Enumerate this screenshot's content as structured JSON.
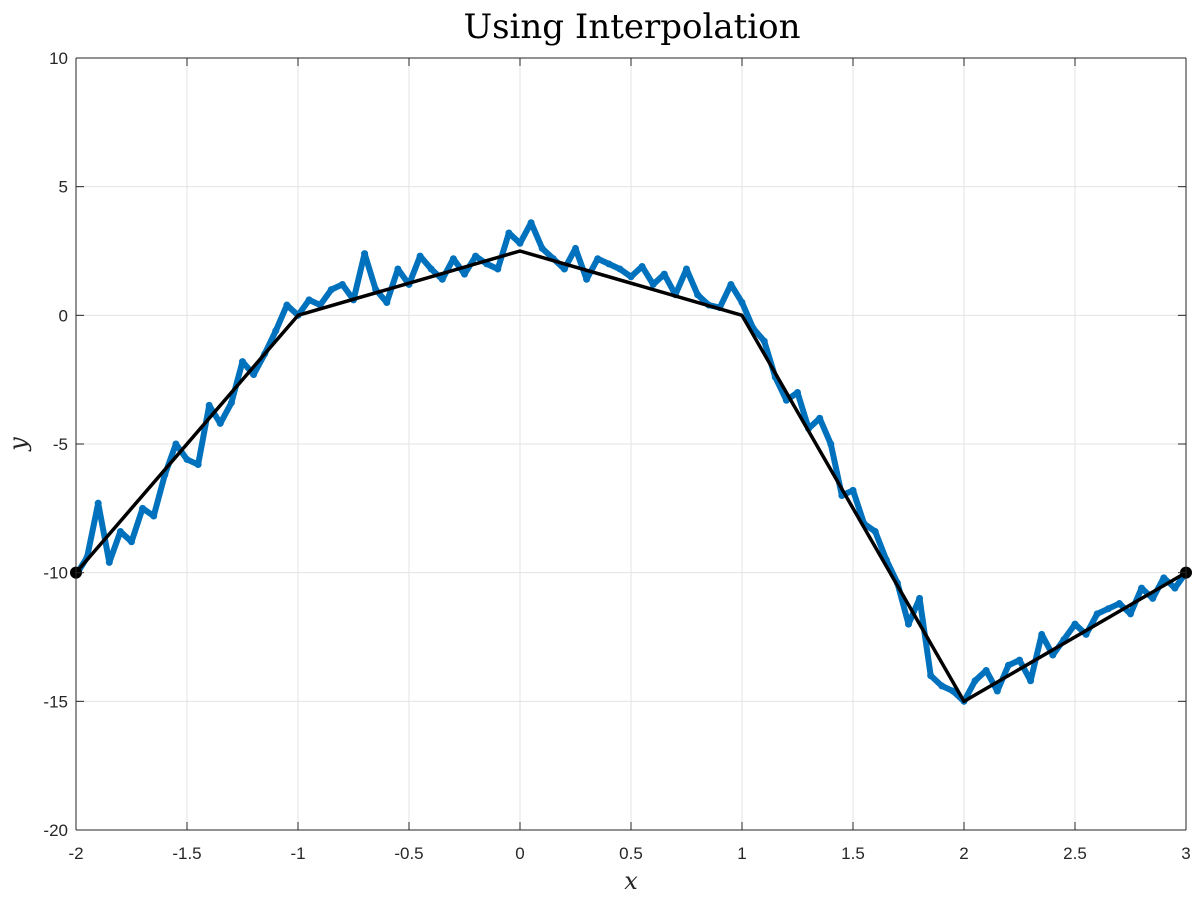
{
  "chart_data": {
    "type": "line",
    "title": "Using Interpolation",
    "xlabel": "x",
    "ylabel": "y",
    "xlim": [
      -2,
      3
    ],
    "ylim": [
      -20,
      10
    ],
    "x_ticks": [
      -2,
      -1.5,
      -1,
      -0.5,
      0,
      0.5,
      1,
      1.5,
      2,
      2.5,
      3
    ],
    "x_tick_labels": [
      "-2",
      "-1.5",
      "-1",
      "-0.5",
      "0",
      "0.5",
      "1",
      "1.5",
      "2",
      "2.5",
      "3"
    ],
    "y_ticks": [
      -20,
      -15,
      -10,
      -5,
      0,
      5,
      10
    ],
    "y_tick_labels": [
      "-20",
      "-15",
      "-10",
      "-5",
      "0",
      "5",
      "10"
    ],
    "grid": true,
    "colors": {
      "noisy": "#0072BD",
      "interp": "#000000"
    },
    "series": [
      {
        "style": "scatter",
        "marker": "dot",
        "color": "#0072BD",
        "x": [
          -2.0,
          -1.95,
          -1.9,
          -1.85,
          -1.8,
          -1.75,
          -1.7,
          -1.65,
          -1.6,
          -1.55,
          -1.5,
          -1.45,
          -1.4,
          -1.35,
          -1.3,
          -1.25,
          -1.2,
          -1.15,
          -1.1,
          -1.05,
          -1.0,
          -0.95,
          -0.9,
          -0.85,
          -0.8,
          -0.75,
          -0.7,
          -0.65,
          -0.6,
          -0.55,
          -0.5,
          -0.45,
          -0.4,
          -0.35,
          -0.3,
          -0.25,
          -0.2,
          -0.15,
          -0.1,
          -0.05,
          0.0,
          0.05,
          0.1,
          0.15,
          0.2,
          0.25,
          0.3,
          0.35,
          0.4,
          0.45,
          0.5,
          0.55,
          0.6,
          0.65,
          0.7,
          0.75,
          0.8,
          0.85,
          0.9,
          0.95,
          1.0,
          1.05,
          1.1,
          1.15,
          1.2,
          1.25,
          1.3,
          1.35,
          1.4,
          1.45,
          1.5,
          1.55,
          1.6,
          1.65,
          1.7,
          1.75,
          1.8,
          1.85,
          1.9,
          1.95,
          2.0,
          2.05,
          2.1,
          2.15,
          2.2,
          2.25,
          2.3,
          2.35,
          2.4,
          2.45,
          2.5,
          2.55,
          2.6,
          2.65,
          2.7,
          2.75,
          2.8,
          2.85,
          2.9,
          2.95,
          3.0
        ],
        "y": [
          -10.1,
          -9.4,
          -7.3,
          -9.6,
          -8.4,
          -8.8,
          -7.5,
          -7.8,
          -6.2,
          -5.0,
          -5.6,
          -5.8,
          -3.5,
          -4.2,
          -3.4,
          -1.8,
          -2.3,
          -1.5,
          -0.6,
          0.4,
          0.0,
          0.6,
          0.4,
          1.0,
          1.2,
          0.6,
          2.4,
          1.0,
          0.5,
          1.8,
          1.2,
          2.3,
          1.8,
          1.4,
          2.2,
          1.6,
          2.3,
          2.0,
          1.8,
          3.2,
          2.8,
          3.6,
          2.6,
          2.2,
          1.8,
          2.6,
          1.4,
          2.2,
          2.0,
          1.8,
          1.5,
          1.9,
          1.2,
          1.6,
          0.8,
          1.8,
          0.8,
          0.4,
          0.3,
          1.2,
          0.5,
          -0.5,
          -1.0,
          -2.4,
          -3.3,
          -3.0,
          -4.4,
          -4.0,
          -5.0,
          -7.0,
          -6.8,
          -8.1,
          -8.4,
          -9.5,
          -10.4,
          -12.0,
          -11.0,
          -14.0,
          -14.4,
          -14.6,
          -15.0,
          -14.2,
          -13.8,
          -14.6,
          -13.6,
          -13.4,
          -14.2,
          -12.4,
          -13.2,
          -12.6,
          -12.0,
          -12.4,
          -11.6,
          -11.4,
          -11.2,
          -11.6,
          -10.6,
          -11.0,
          -10.2,
          -10.6,
          -10.0
        ]
      },
      {
        "style": "line",
        "color": "#000000",
        "x": [
          -2,
          -1,
          0,
          1,
          2,
          3
        ],
        "y": [
          -10,
          0,
          2.5,
          0,
          -15,
          -10
        ]
      },
      {
        "style": "endpoints",
        "color": "#000000",
        "x": [
          -2,
          3
        ],
        "y": [
          -10,
          -10
        ]
      }
    ]
  }
}
